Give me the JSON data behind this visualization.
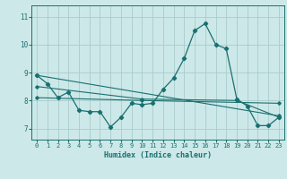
{
  "title": "",
  "xlabel": "Humidex (Indice chaleur)",
  "ylabel": "",
  "bg_color": "#cce8e8",
  "line_color": "#1a7070",
  "grid_color": "#aacccc",
  "x_ticks": [
    0,
    1,
    2,
    3,
    4,
    5,
    6,
    7,
    8,
    9,
    10,
    11,
    12,
    13,
    14,
    15,
    16,
    17,
    18,
    19,
    20,
    21,
    22,
    23
  ],
  "y_ticks": [
    7,
    8,
    9,
    10,
    11
  ],
  "ylim": [
    6.6,
    11.4
  ],
  "xlim": [
    -0.5,
    23.5
  ],
  "series_main": {
    "x": [
      0,
      1,
      2,
      3,
      4,
      5,
      6,
      7,
      8,
      9,
      10,
      11,
      12,
      13,
      14,
      15,
      16,
      17,
      18,
      19,
      20,
      21,
      22,
      23
    ],
    "y": [
      8.9,
      8.6,
      8.1,
      8.3,
      7.65,
      7.6,
      7.6,
      7.05,
      7.4,
      7.9,
      7.85,
      7.9,
      8.4,
      8.8,
      9.5,
      10.5,
      10.75,
      10.0,
      9.85,
      8.05,
      7.8,
      7.1,
      7.1,
      7.4
    ]
  },
  "series_extra": [
    {
      "x": [
        0,
        23
      ],
      "y": [
        8.9,
        7.45
      ]
    },
    {
      "x": [
        0,
        10,
        23
      ],
      "y": [
        8.1,
        8.0,
        7.9
      ]
    },
    {
      "x": [
        0,
        10,
        19,
        23
      ],
      "y": [
        8.5,
        8.05,
        8.0,
        7.4
      ]
    }
  ]
}
